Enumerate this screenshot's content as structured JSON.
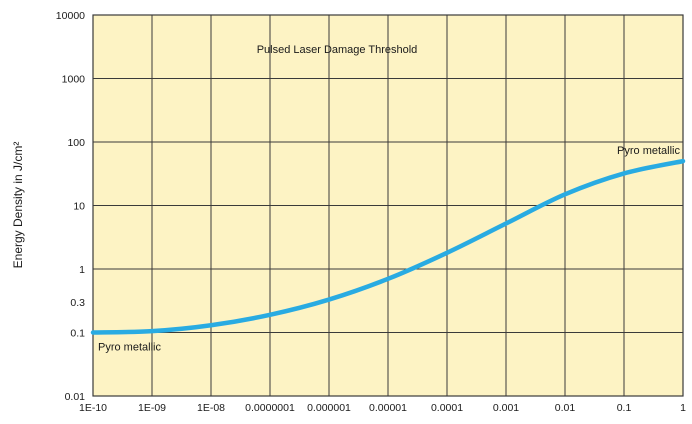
{
  "chart_data": {
    "type": "line",
    "title": "Pulsed Laser Damage Threshold",
    "xlabel": "",
    "ylabel": "Energy Density in J/cm²",
    "x_scale": "log",
    "y_scale": "log",
    "xlim": [
      1e-10,
      1
    ],
    "ylim": [
      0.01,
      10000
    ],
    "grid": true,
    "x_ticks": [
      {
        "value": 1e-10,
        "label": "1E-10"
      },
      {
        "value": 1e-09,
        "label": "1E-09"
      },
      {
        "value": 1e-08,
        "label": "1E-08"
      },
      {
        "value": 1e-07,
        "label": "0.0000001"
      },
      {
        "value": 1e-06,
        "label": "0.000001"
      },
      {
        "value": 1e-05,
        "label": "0.00001"
      },
      {
        "value": 0.0001,
        "label": "0.0001"
      },
      {
        "value": 0.001,
        "label": "0.001"
      },
      {
        "value": 0.01,
        "label": "0.01"
      },
      {
        "value": 0.1,
        "label": "0.1"
      },
      {
        "value": 1,
        "label": "1"
      }
    ],
    "y_ticks": [
      {
        "value": 0.01,
        "label": "0.01"
      },
      {
        "value": 0.1,
        "label": "0.1"
      },
      {
        "value": 0.3,
        "label": "0.3"
      },
      {
        "value": 1,
        "label": "1"
      },
      {
        "value": 10,
        "label": "10"
      },
      {
        "value": 100,
        "label": "100"
      },
      {
        "value": 1000,
        "label": "1000"
      },
      {
        "value": 10000,
        "label": "10000"
      }
    ],
    "series": [
      {
        "color": "#29abe2",
        "x": [
          1e-10,
          1e-09,
          1e-08,
          1e-07,
          1e-06,
          1e-05,
          0.0001,
          0.001,
          0.01,
          0.1,
          1
        ],
        "y": [
          0.1,
          0.105,
          0.13,
          0.19,
          0.33,
          0.7,
          1.8,
          5.2,
          15,
          32,
          50
        ]
      }
    ],
    "annotations": [
      {
        "text": "Pyro metallic",
        "x": 1e-10,
        "y": 0.1,
        "position": "below-right"
      },
      {
        "text": "Pyro metallic",
        "x": 1,
        "y": 50,
        "position": "above-left"
      }
    ],
    "colors": {
      "plot_background": "#fdf3c4",
      "grid": "#3a3a3a",
      "curve": "#29abe2"
    }
  }
}
